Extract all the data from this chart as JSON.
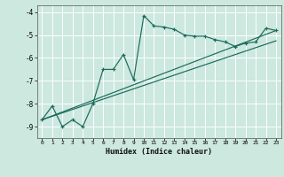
{
  "title": "",
  "xlabel": "Humidex (Indice chaleur)",
  "bg_color": "#cce8df",
  "line_color": "#1a6b5a",
  "grid_color": "#ffffff",
  "xlim": [
    -0.5,
    23.5
  ],
  "ylim": [
    -9.5,
    -3.7
  ],
  "yticks": [
    -9,
    -8,
    -7,
    -6,
    -5,
    -4
  ],
  "xticks": [
    0,
    1,
    2,
    3,
    4,
    5,
    6,
    7,
    8,
    9,
    10,
    11,
    12,
    13,
    14,
    15,
    16,
    17,
    18,
    19,
    20,
    21,
    22,
    23
  ],
  "curve1_x": [
    0,
    1,
    2,
    3,
    4,
    5,
    6,
    7,
    8,
    9,
    10,
    11,
    12,
    13,
    14,
    15,
    16,
    17,
    18,
    19,
    20,
    21,
    22,
    23
  ],
  "curve1_y": [
    -8.7,
    -8.1,
    -9.0,
    -8.7,
    -9.0,
    -8.0,
    -6.5,
    -6.5,
    -5.85,
    -6.95,
    -4.15,
    -4.6,
    -4.65,
    -4.75,
    -5.0,
    -5.05,
    -5.05,
    -5.2,
    -5.3,
    -5.5,
    -5.35,
    -5.3,
    -4.7,
    -4.8
  ],
  "curve2_x": [
    0,
    23
  ],
  "curve2_y": [
    -8.7,
    -4.8
  ],
  "curve3_x": [
    0,
    23
  ],
  "curve3_y": [
    -8.7,
    -5.25
  ]
}
